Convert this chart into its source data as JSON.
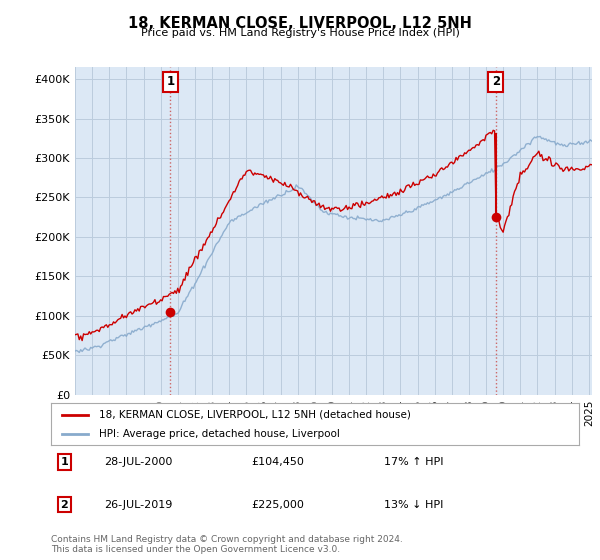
{
  "title": "18, KERMAN CLOSE, LIVERPOOL, L12 5NH",
  "subtitle": "Price paid vs. HM Land Registry's House Price Index (HPI)",
  "ylabel_ticks": [
    "£0",
    "£50K",
    "£100K",
    "£150K",
    "£200K",
    "£250K",
    "£300K",
    "£350K",
    "£400K"
  ],
  "ytick_values": [
    0,
    50000,
    100000,
    150000,
    200000,
    250000,
    300000,
    350000,
    400000
  ],
  "ylim": [
    0,
    415000
  ],
  "xlim_start": 1995.3,
  "xlim_end": 2025.2,
  "marker1_year": 2000.57,
  "marker1_price": 104450,
  "marker2_year": 2019.57,
  "marker2_price": 225000,
  "red_line_color": "#cc0000",
  "blue_line_color": "#88aacc",
  "marker_dot_color": "#cc0000",
  "vline_color": "#cc6666",
  "background_color": "#ffffff",
  "plot_bg_color": "#dce8f5",
  "grid_color": "#bbccdd",
  "legend_label_red": "18, KERMAN CLOSE, LIVERPOOL, L12 5NH (detached house)",
  "legend_label_blue": "HPI: Average price, detached house, Liverpool",
  "annotation1_date": "28-JUL-2000",
  "annotation1_price": "£104,450",
  "annotation1_pct": "17% ↑ HPI",
  "annotation2_date": "26-JUL-2019",
  "annotation2_price": "£225,000",
  "annotation2_pct": "13% ↓ HPI",
  "footer": "Contains HM Land Registry data © Crown copyright and database right 2024.\nThis data is licensed under the Open Government Licence v3.0.",
  "xtick_years": [
    1995,
    1996,
    1997,
    1998,
    1999,
    2000,
    2001,
    2002,
    2003,
    2004,
    2005,
    2006,
    2007,
    2008,
    2009,
    2010,
    2011,
    2012,
    2013,
    2014,
    2015,
    2016,
    2017,
    2018,
    2019,
    2020,
    2021,
    2022,
    2023,
    2024,
    2025
  ]
}
